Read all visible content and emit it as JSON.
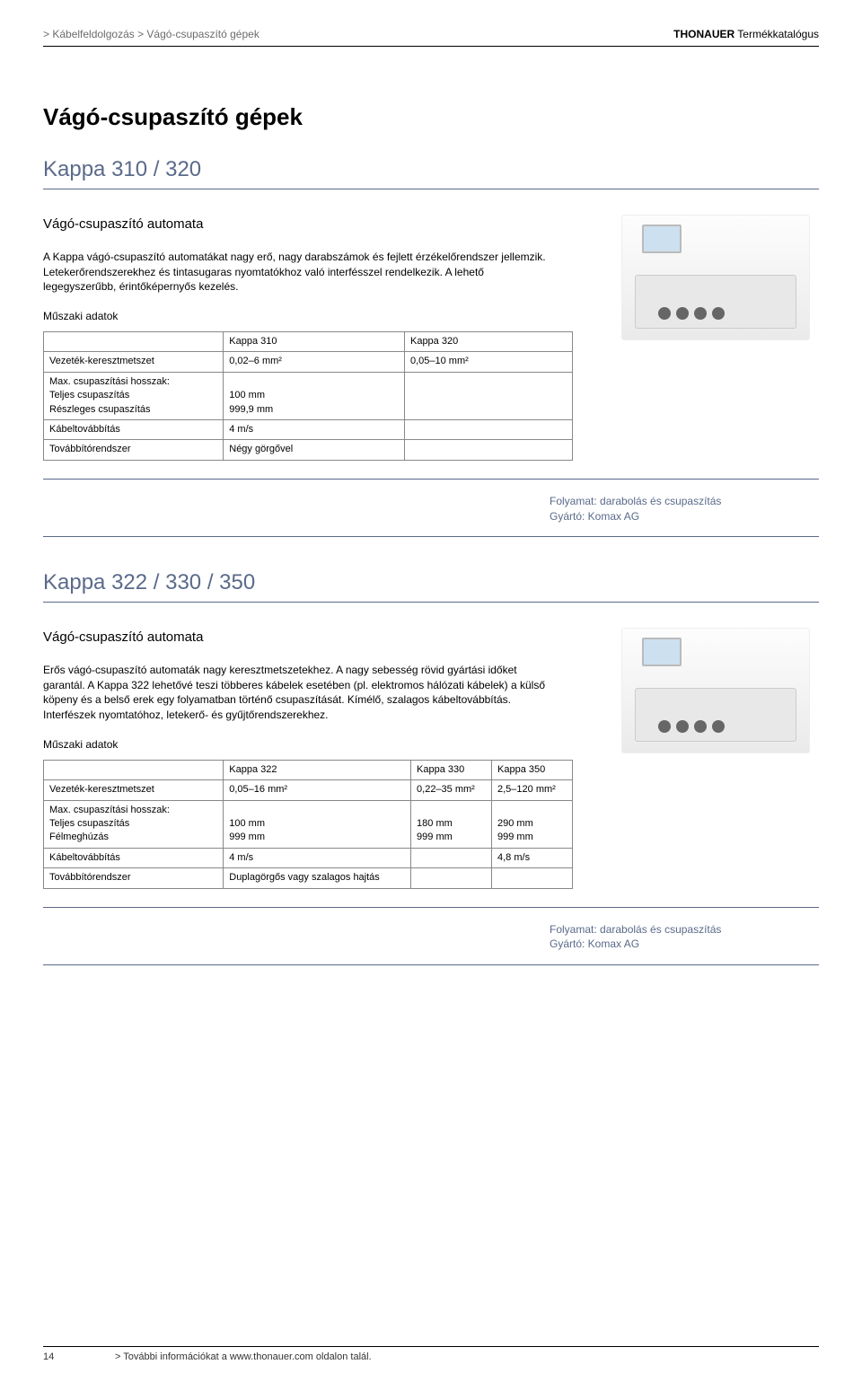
{
  "header": {
    "breadcrumb": "> Kábelfeldolgozás > Vágó-csupaszító gépek",
    "brand_bold": "THONAUER",
    "brand_rest": " Termékkatalógus"
  },
  "section_title": "Vágó-csupaszító gépek",
  "product1": {
    "model": "Kappa 310 / 320",
    "subhead": "Vágó-csupaszító automata",
    "description": "A Kappa vágó-csupaszító automatákat nagy erő, nagy darabszámok és fejlett érzékelőrendszer jellemzik. Letekerőrendszerekhez és tintasugaras nyomtatókhoz való interfésszel rendelkezik. A lehető legegyszerűbb, érintőképernyős kezelés.",
    "spec_label": "Műszaki adatok",
    "table": {
      "columns": [
        "",
        "Kappa 310",
        "Kappa 320"
      ],
      "rows": [
        [
          "Vezeték-keresztmetszet",
          "0,02–6 mm²",
          "0,05–10 mm²"
        ],
        [
          "Max. csupaszítási hosszak:\nTeljes csupaszítás\nRészleges csupaszítás",
          "\n100 mm\n999,9 mm",
          ""
        ],
        [
          "Kábeltovábbítás",
          "4 m/s",
          ""
        ],
        [
          "Továbbítórendszer",
          "Négy görgővel",
          ""
        ]
      ]
    },
    "meta_process": "Folyamat: darabolás és csupaszítás",
    "meta_mfr": "Gyártó: Komax AG"
  },
  "product2": {
    "model": "Kappa 322 / 330 / 350",
    "subhead": "Vágó-csupaszító automata",
    "description": "Erős vágó-csupaszító automaták nagy keresztmetszetekhez. A nagy sebesség rövid gyártási időket garantál. A Kappa 322 lehetővé teszi többeres kábelek esetében (pl. elektromos hálózati kábelek) a külső köpeny és a belső erek egy folyamatban történő csupaszítását. Kímélő, szalagos kábeltovábbítás. Interfészek nyomtatóhoz, letekerő- és gyűjtőrendszerekhez.",
    "spec_label": "Műszaki adatok",
    "table": {
      "columns": [
        "",
        "Kappa 322",
        "Kappa 330",
        "Kappa 350"
      ],
      "rows": [
        [
          "Vezeték-keresztmetszet",
          "0,05–16 mm²",
          "0,22–35 mm²",
          "2,5–120 mm²"
        ],
        [
          "Max. csupaszítási hosszak:\nTeljes csupaszítás\nFélmeghúzás",
          "\n100 mm\n999 mm",
          "\n180 mm\n999 mm",
          "\n290 mm\n999 mm"
        ],
        [
          "Kábeltovábbítás",
          "4 m/s",
          "",
          "4,8 m/s"
        ],
        [
          "Továbbítórendszer",
          "Duplagörgős vagy szalagos hajtás",
          "",
          ""
        ]
      ]
    },
    "meta_process": "Folyamat: darabolás és csupaszítás",
    "meta_mfr": "Gyártó: Komax AG"
  },
  "footer": {
    "page_number": "14",
    "more_info": "> További információkat a www.thonauer.com oldalon talál."
  },
  "colors": {
    "accent": "#5a6a8a",
    "text": "#000000",
    "muted": "#6b6b6b",
    "border": "#888888"
  }
}
